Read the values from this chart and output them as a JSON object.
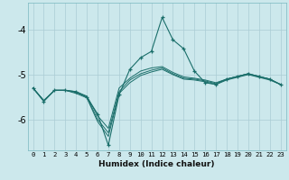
{
  "xlabel": "Humidex (Indice chaleur)",
  "bg_color": "#cce8ec",
  "grid_color": "#aaccd4",
  "line_color": "#1a6e6a",
  "xlim": [
    -0.5,
    23.5
  ],
  "ylim": [
    -6.7,
    -3.4
  ],
  "yticks": [
    -6,
    -5,
    -4
  ],
  "xticks": [
    0,
    1,
    2,
    3,
    4,
    5,
    6,
    7,
    8,
    9,
    10,
    11,
    12,
    13,
    14,
    15,
    16,
    17,
    18,
    19,
    20,
    21,
    22,
    23
  ],
  "line_spike_x": [
    0,
    1,
    2,
    3,
    4,
    5,
    6,
    7,
    8,
    9,
    10,
    11,
    12,
    13,
    14,
    15,
    16,
    17,
    18,
    19,
    20,
    21,
    22,
    23
  ],
  "line_spike_y": [
    -5.3,
    -5.6,
    -5.35,
    -5.35,
    -5.38,
    -5.5,
    -5.88,
    -6.58,
    -5.45,
    -4.88,
    -4.62,
    -4.48,
    -3.72,
    -4.22,
    -4.42,
    -4.92,
    -5.18,
    -5.22,
    -5.1,
    -5.04,
    -4.98,
    -5.04,
    -5.1,
    -5.22
  ],
  "line_upper_x": [
    0,
    1,
    2,
    3,
    4,
    5,
    6,
    7,
    8,
    9,
    10,
    11,
    12,
    13,
    14,
    15,
    16,
    17,
    18,
    19,
    20,
    21,
    22,
    23
  ],
  "line_upper_y": [
    -5.3,
    -5.58,
    -5.35,
    -5.35,
    -5.38,
    -5.48,
    -5.92,
    -6.2,
    -5.3,
    -5.08,
    -4.92,
    -4.85,
    -4.82,
    -4.95,
    -5.05,
    -5.08,
    -5.12,
    -5.18,
    -5.1,
    -5.04,
    -4.98,
    -5.04,
    -5.1,
    -5.22
  ],
  "line_mid_x": [
    0,
    1,
    2,
    3,
    4,
    5,
    6,
    7,
    8,
    9,
    10,
    11,
    12,
    13,
    14,
    15,
    16,
    17,
    18,
    19,
    20,
    21,
    22,
    23
  ],
  "line_mid_y": [
    -5.3,
    -5.58,
    -5.35,
    -5.35,
    -5.4,
    -5.5,
    -6.0,
    -6.3,
    -5.38,
    -5.12,
    -4.98,
    -4.9,
    -4.85,
    -4.98,
    -5.08,
    -5.1,
    -5.14,
    -5.2,
    -5.1,
    -5.04,
    -4.98,
    -5.04,
    -5.1,
    -5.22
  ],
  "line_lower_x": [
    0,
    1,
    2,
    3,
    4,
    5,
    6,
    7,
    8,
    9,
    10,
    11,
    12,
    13,
    14,
    15,
    16,
    17,
    18,
    19,
    20,
    21,
    22,
    23
  ],
  "line_lower_y": [
    -5.3,
    -5.58,
    -5.35,
    -5.35,
    -5.42,
    -5.52,
    -6.05,
    -6.38,
    -5.42,
    -5.18,
    -5.02,
    -4.94,
    -4.88,
    -5.0,
    -5.1,
    -5.12,
    -5.16,
    -5.22,
    -5.12,
    -5.06,
    -5.0,
    -5.06,
    -5.12,
    -5.22
  ]
}
